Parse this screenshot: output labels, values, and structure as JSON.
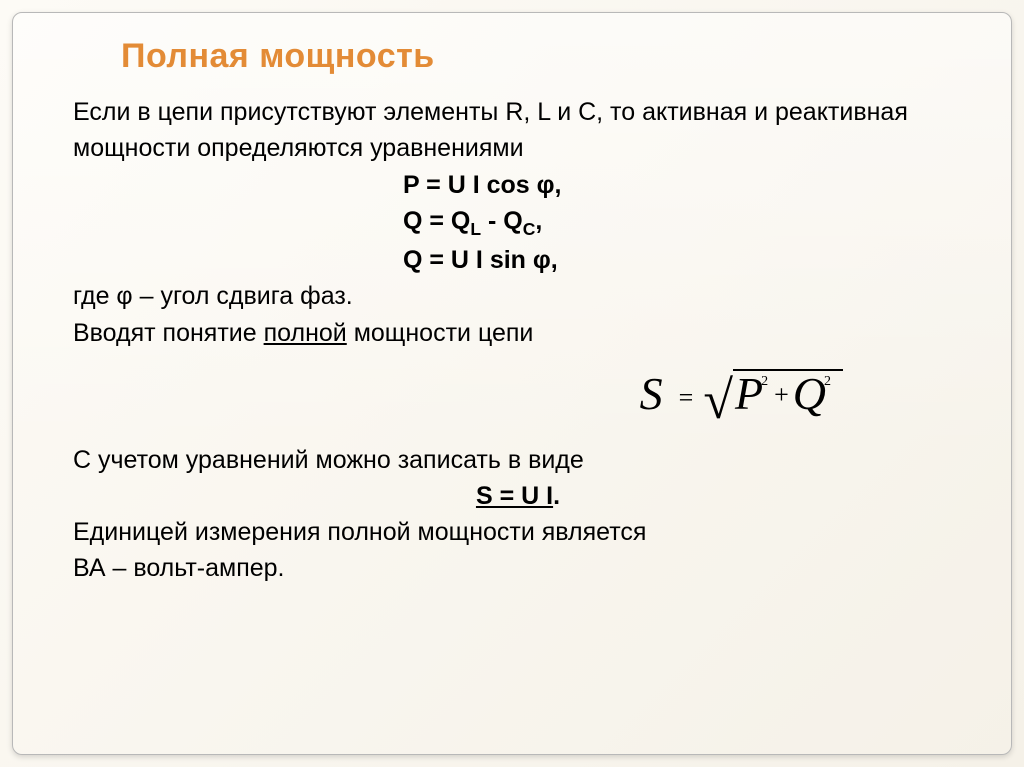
{
  "title": "Полная мощность",
  "p1": "Если в цепи присутствуют элементы R, L и C, то активная и реактивная мощности определяются уравнениями",
  "f1": "P = U I cos φ,",
  "f2l": "Q = Q",
  "f2subL": "L",
  "f2m": " - Q",
  "f2subC": "C",
  "f2r": ",",
  "f3": "Q = U I sin φ,",
  "p2a": "где φ – угол сдвига фаз.",
  "p2b_pre": "Вводят понятие ",
  "p2b_u": "полной",
  "p2b_post": " мощности цепи",
  "eq": {
    "S": "S",
    "eq": "=",
    "surd": "√",
    "P": "P",
    "sup": "2",
    "plus": "+",
    "Q": "Q"
  },
  "p3": "С учетом уравнений можно записать в виде",
  "f4": "S = U I",
  "f4tail": ".",
  "p4a": "Единицей измерения полной мощности является",
  "p4b": "ВА – вольт-ампер.",
  "colors": {
    "title": "#e38b36",
    "text": "#000000",
    "border": "#b8b8b8",
    "bg_start": "#fdfbf6",
    "bg_end": "#f5f1e8"
  },
  "fontsize": {
    "title": 34,
    "body": 25,
    "eq_big": 46,
    "eq_small": 26,
    "sup": 14
  }
}
